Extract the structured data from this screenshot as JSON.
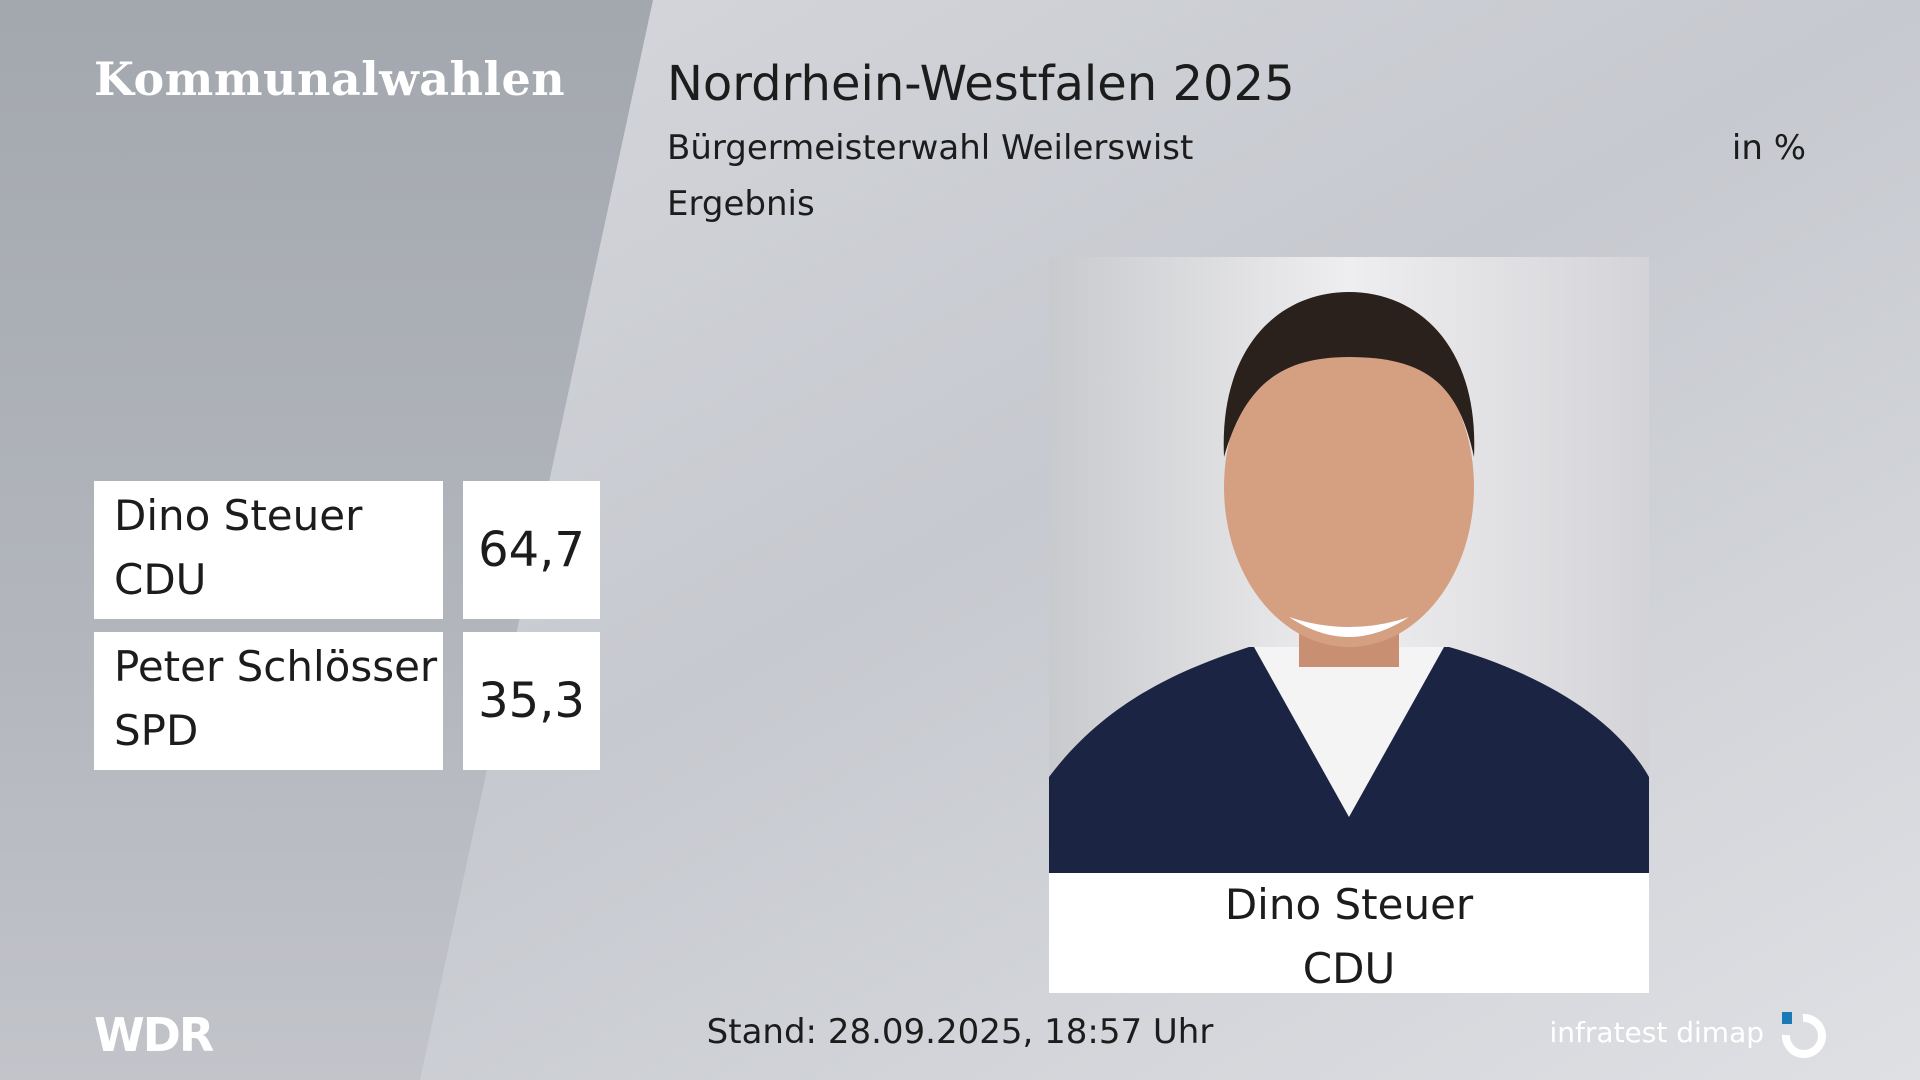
{
  "header": {
    "brand": "Kommunalwahlen",
    "title": "Nordrhein-Westfalen 2025",
    "subtitle": "Bürgermeisterwahl Weilerswist",
    "unit": "in %",
    "status": "Ergebnis"
  },
  "results": [
    {
      "name": "Dino Steuer",
      "party": "CDU",
      "value": "64,7"
    },
    {
      "name": "Peter Schlösser",
      "party": "SPD",
      "value": "35,3"
    }
  ],
  "portrait": {
    "name": "Dino Steuer",
    "party": "CDU"
  },
  "footer": {
    "logo": "WDR",
    "timestamp": "Stand: 28.09.2025, 18:57 Uhr",
    "source": "infratest dimap"
  }
}
